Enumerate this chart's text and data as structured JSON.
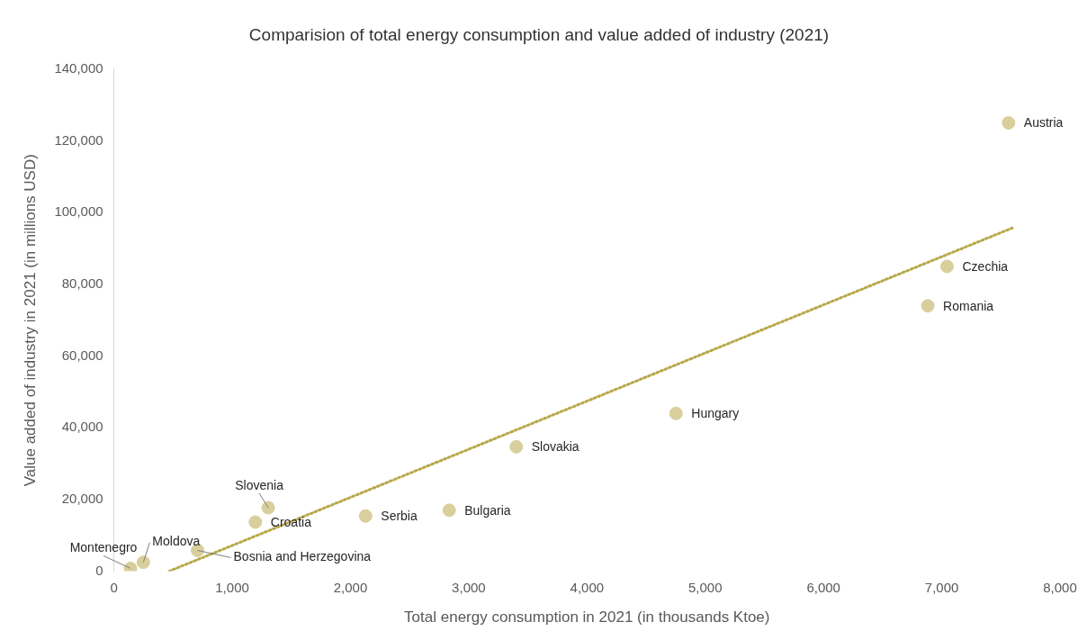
{
  "chart_data": {
    "type": "scatter",
    "title": "Comparision of total energy consumption and value added of industry (2021)",
    "xlabel": "Total energy consumption in 2021 (in thousands Ktoe)",
    "ylabel": "Value added of industry in 2021 (in millions USD)",
    "series": [
      {
        "type": "scatter",
        "color": "#d9cf9c",
        "marker": "circle",
        "x": [
          7565,
          7045,
          6882,
          4753,
          3402,
          2835,
          2128,
          1305,
          1196,
          707,
          249,
          140
        ],
        "values": [
          125000,
          85000,
          74000,
          44000,
          34700,
          17000,
          15400,
          17700,
          13700,
          5800,
          2500,
          800
        ]
      },
      {
        "type": "line",
        "color": "#b8a84a",
        "marker": "none",
        "line_style": "dotted",
        "x": [
          466,
          7596
        ],
        "values": [
          0,
          95700
        ]
      }
    ],
    "annotations": [
      {
        "text": "Austria",
        "x": 7565,
        "y": 125000
      },
      {
        "text": "Czechia",
        "x": 7045,
        "y": 85000
      },
      {
        "text": "Romania",
        "x": 6882,
        "y": 74000
      },
      {
        "text": "Hungary",
        "x": 4753,
        "y": 44000
      },
      {
        "text": "Slovakia",
        "x": 3402,
        "y": 34700
      },
      {
        "text": "Bulgaria",
        "x": 2835,
        "y": 17000
      },
      {
        "text": "Serbia",
        "x": 2128,
        "y": 15400
      },
      {
        "text": "Slovenia",
        "x": 1305,
        "y": 17700
      },
      {
        "text": "Croatia",
        "x": 1196,
        "y": 13700
      },
      {
        "text": "Bosnia and Herzegovina",
        "x": 707,
        "y": 5800
      },
      {
        "text": "Moldova",
        "x": 249,
        "y": 2500
      },
      {
        "text": "Montenegro",
        "x": 140,
        "y": 800
      }
    ],
    "xlim": [
      0,
      8000
    ],
    "xticks": [
      {
        "value": 0,
        "label": "0"
      },
      {
        "value": 1000,
        "label": "1,000"
      },
      {
        "value": 2000,
        "label": "2,000"
      },
      {
        "value": 3000,
        "label": "3,000"
      },
      {
        "value": 4000,
        "label": "4,000"
      },
      {
        "value": 5000,
        "label": "5,000"
      },
      {
        "value": 6000,
        "label": "6,000"
      },
      {
        "value": 7000,
        "label": "7,000"
      },
      {
        "value": 8000,
        "label": "8,000"
      }
    ],
    "ylim": [
      0,
      140000
    ],
    "yticks": [
      {
        "value": 0,
        "label": "0"
      },
      {
        "value": 20000,
        "label": "20,000"
      },
      {
        "value": 40000,
        "label": "40,000"
      },
      {
        "value": 60000,
        "label": "60,000"
      },
      {
        "value": 80000,
        "label": "80,000"
      },
      {
        "value": 100000,
        "label": "100,000"
      },
      {
        "value": 120000,
        "label": "120,000"
      },
      {
        "value": 140000,
        "label": "140,000"
      }
    ],
    "grid": false,
    "legend": false
  }
}
